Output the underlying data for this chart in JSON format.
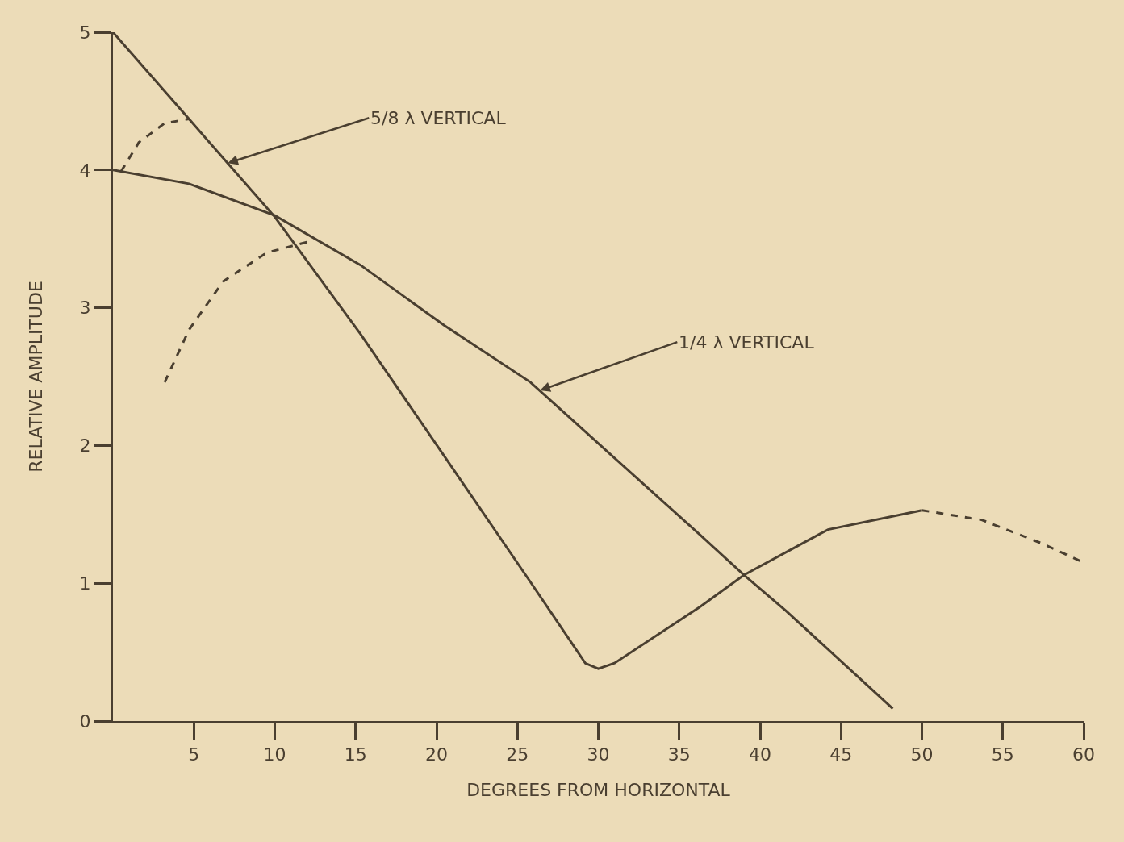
{
  "chart_data": {
    "type": "line",
    "xlabel": "DEGREES FROM HORIZONTAL",
    "ylabel": "RELATIVE AMPLITUDE",
    "xlim": [
      0,
      60
    ],
    "ylim": [
      0,
      5
    ],
    "xticks": [
      5,
      10,
      15,
      20,
      25,
      30,
      35,
      40,
      45,
      50,
      55,
      60
    ],
    "yticks": [
      0,
      1,
      2,
      3,
      4,
      5
    ],
    "grid": false,
    "marker": "none",
    "series": [
      {
        "color": "#4a3f30",
        "line_style": "solid",
        "x": [
          0,
          4.7,
          10,
          15.3,
          20.5,
          25.8,
          29.2,
          30,
          31,
          36.3,
          39,
          44.2,
          50
        ],
        "values": [
          5.0,
          4.37,
          3.66,
          2.81,
          1.92,
          1.01,
          0.42,
          0.38,
          0.42,
          0.83,
          1.06,
          1.39,
          1.53
        ]
      },
      {
        "color": "#4a3f30",
        "line_style": "dashed",
        "x": [
          50,
          53.7,
          57.4,
          60
        ],
        "values": [
          1.53,
          1.46,
          1.29,
          1.15
        ]
      },
      {
        "color": "#4a3f30",
        "line_style": "solid",
        "x": [
          0,
          4.7,
          10,
          15.3,
          20.5,
          25.8,
          31,
          36.3,
          39,
          41.6,
          48.2
        ],
        "values": [
          4.0,
          3.9,
          3.67,
          3.31,
          2.87,
          2.46,
          1.91,
          1.35,
          1.06,
          0.8,
          0.09
        ]
      },
      {
        "color": "#4a3f30",
        "line_style": "dashed",
        "x": [
          0.5,
          1.6,
          3.2,
          4.7
        ],
        "values": [
          3.99,
          4.2,
          4.34,
          4.37
        ]
      },
      {
        "color": "#4a3f30",
        "line_style": "dashed",
        "x": [
          3.2,
          4.7,
          6.8,
          9.5,
          12.1
        ],
        "values": [
          2.46,
          2.84,
          3.19,
          3.4,
          3.48
        ]
      }
    ],
    "annotations": [
      {
        "text": "5/8 λ VERTICAL",
        "x": 7.1,
        "y": 4.05
      },
      {
        "text": "1/4 λ VERTICAL",
        "x": 26.4,
        "y": 2.4
      }
    ]
  }
}
